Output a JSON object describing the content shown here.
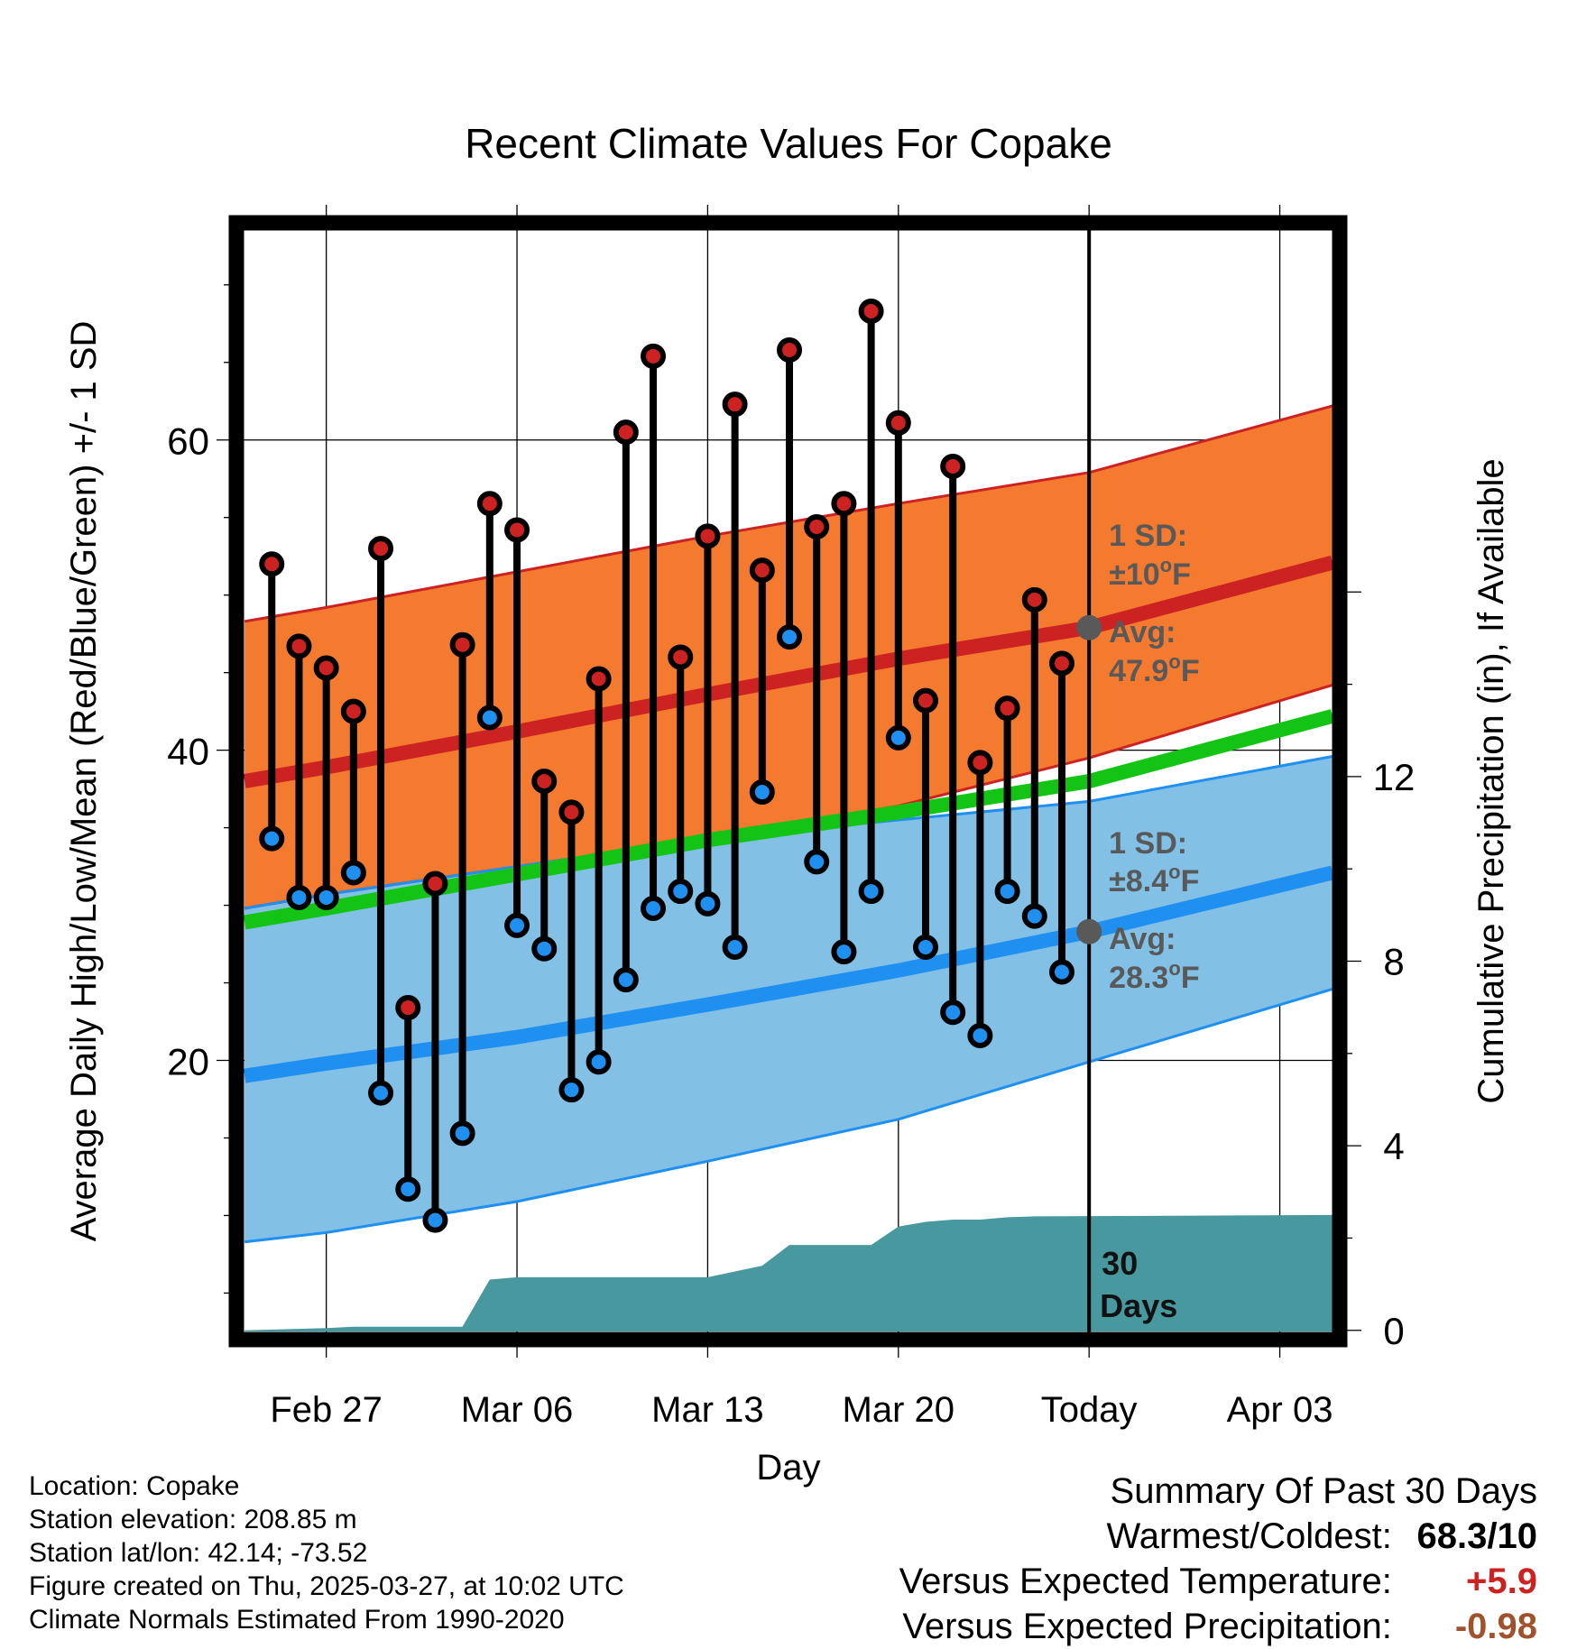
{
  "chart_data": {
    "type": "line",
    "title": "Recent Climate Values For Copake",
    "xlabel": "Day",
    "ylabel": "Average Daily High/Low/Mean (Red/Blue/Green) +/- 1 SD",
    "y2label": "Cumulative Precipitation (in), If Available",
    "x_tick_labels": [
      "Feb 27",
      "Mar 06",
      "Mar 13",
      "Mar 20",
      "Today",
      "Apr 03"
    ],
    "x_tick_days": [
      0,
      7,
      14,
      21,
      28,
      35
    ],
    "xlim": [
      -3.3,
      37.2
    ],
    "ylim": [
      2,
      74
    ],
    "y_ticks": [
      20,
      40,
      60
    ],
    "y2lim": [
      -0.2,
      24.0
    ],
    "y2_ticks": [
      0,
      4,
      8,
      12
    ],
    "grid": true,
    "normals": {
      "days": [
        -3,
        0,
        7,
        14,
        21,
        28,
        37
      ],
      "avg_high": [
        38.0,
        38.9,
        41.2,
        43.6,
        45.9,
        47.9,
        52.1
      ],
      "high_plus_sd": [
        48.3,
        49.2,
        51.5,
        53.8,
        55.9,
        57.9,
        62.2
      ],
      "high_minus_sd": [
        29.8,
        30.7,
        32.5,
        34.3,
        36.4,
        39.5,
        44.2
      ],
      "avg_mean": [
        28.9,
        29.8,
        32.0,
        34.2,
        36.0,
        38.0,
        42.2
      ],
      "avg_low": [
        19.0,
        19.8,
        21.5,
        23.6,
        25.8,
        28.3,
        32.1
      ],
      "low_plus_sd": [
        29.8,
        30.7,
        32.5,
        34.3,
        35.5,
        36.7,
        39.6
      ],
      "low_minus_sd": [
        8.3,
        8.9,
        10.9,
        13.5,
        16.2,
        19.9,
        24.6
      ]
    },
    "series": [
      {
        "name": "Daily High",
        "color": "#cc2222",
        "days": [
          -2,
          -1,
          0,
          1,
          2,
          3,
          4,
          5,
          6,
          7,
          8,
          9,
          10,
          11,
          12,
          13,
          14,
          15,
          16,
          17,
          18,
          19,
          20,
          21,
          22,
          23,
          24,
          25,
          26,
          27
        ],
        "values": [
          52.0,
          46.7,
          45.3,
          42.5,
          53.0,
          23.4,
          31.4,
          46.8,
          55.9,
          54.2,
          38.0,
          36.0,
          44.6,
          60.5,
          65.4,
          46.0,
          53.8,
          62.3,
          51.6,
          65.8,
          54.4,
          55.9,
          68.3,
          61.1,
          43.2,
          58.3,
          39.2,
          42.7,
          49.7,
          45.6
        ]
      },
      {
        "name": "Daily Low",
        "color": "#2288ee",
        "days": [
          -2,
          -1,
          0,
          1,
          2,
          3,
          4,
          5,
          6,
          7,
          8,
          9,
          10,
          11,
          12,
          13,
          14,
          15,
          16,
          17,
          18,
          19,
          20,
          21,
          22,
          23,
          24,
          25,
          26,
          27
        ],
        "values": [
          34.3,
          30.5,
          30.5,
          32.1,
          17.9,
          11.7,
          9.7,
          15.3,
          42.1,
          28.7,
          27.2,
          18.1,
          19.9,
          25.2,
          29.8,
          30.9,
          30.1,
          27.3,
          37.3,
          47.3,
          32.8,
          27.0,
          30.9,
          40.8,
          27.3,
          23.1,
          21.6,
          30.9,
          29.3,
          25.7
        ]
      },
      {
        "name": "Cumulative Precipitation",
        "color": "#48999f",
        "days": [
          -3,
          0,
          1,
          5,
          6,
          7,
          14,
          16,
          17,
          18,
          19,
          20,
          21,
          22,
          23,
          24,
          25,
          26,
          37
        ],
        "values": [
          0.0,
          0.05,
          0.08,
          0.08,
          1.1,
          1.15,
          1.15,
          1.4,
          1.85,
          1.85,
          1.85,
          1.85,
          2.25,
          2.35,
          2.4,
          2.4,
          2.45,
          2.47,
          2.5
        ]
      }
    ],
    "today_annotations": {
      "high_sd_label": "1 SD:",
      "high_sd_value": "±10",
      "high_avg_label": "Avg:",
      "high_avg_value": "47.9",
      "low_sd_label": "1 SD:",
      "low_sd_value": "±8.4",
      "low_avg_label": "Avg:",
      "low_avg_value": "28.3",
      "deg_symbol": "o",
      "unit": "F",
      "window_number": "30",
      "window_label": "Days",
      "marker_color": "#595959"
    },
    "colors": {
      "high_band": "#f47a30",
      "high_line": "#cc2222",
      "low_band": "#82c0e6",
      "low_line": "#1f8ff0",
      "mean_line": "#14c414",
      "precip": "#48999f",
      "annotation_text": "#595959"
    }
  },
  "info": {
    "location": "Location: Copake",
    "elevation": "Station elevation: 208.85 m",
    "latlon": "Station lat/lon: 42.14; -73.52",
    "created": "Figure created on Thu, 2025-03-27, at 10:02 UTC",
    "normals": "Climate Normals Estimated From 1990-2020"
  },
  "summary": {
    "title": "Summary Of Past 30 Days",
    "warmest_coldest_label": "Warmest/Coldest:",
    "warmest_coldest_value": "68.3/10",
    "temp_label": "Versus Expected Temperature:",
    "temp_value": "+5.9",
    "temp_color": "#cc2222",
    "precip_label": "Versus Expected Precipitation:",
    "precip_value": "-0.98",
    "precip_color": "#a0522d"
  }
}
